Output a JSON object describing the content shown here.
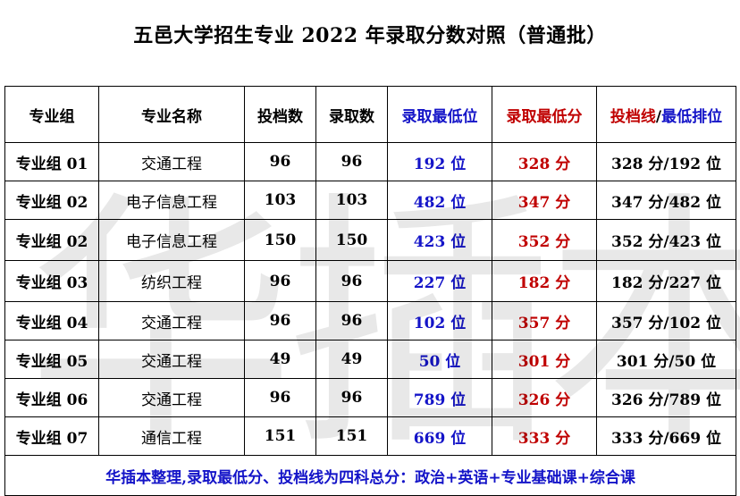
{
  "title": "五邑大学招生专业 2022 年录取分数对照（普通批）",
  "watermark": "华插本",
  "headers": {
    "group": "专业组",
    "major": "专业名称",
    "filed": "投档数",
    "admitted": "录取数",
    "min_rank": "录取最低位",
    "min_score": "录取最低分",
    "line_part1": "投档线",
    "line_sep": "/",
    "line_part2": "最低排位"
  },
  "rows": [
    {
      "group": "专业组 01",
      "major": "交通工程",
      "filed": "96",
      "admitted": "96",
      "min_rank": "192 位",
      "min_score": "328 分",
      "line": "328 分/192 位"
    },
    {
      "group": "专业组 02",
      "major": "电子信息工程",
      "filed": "103",
      "admitted": "103",
      "min_rank": "482 位",
      "min_score": "347 分",
      "line": "347 分/482 位"
    },
    {
      "group": "专业组 02",
      "major": "电子信息工程",
      "filed": "150",
      "admitted": "150",
      "min_rank": "423 位",
      "min_score": "352 分",
      "line": "352 分/423 位"
    },
    {
      "group": "专业组 03",
      "major": "纺织工程",
      "filed": "96",
      "admitted": "96",
      "min_rank": "227 位",
      "min_score": "182 分",
      "line": "182 分/227 位"
    },
    {
      "group": "专业组 04",
      "major": "交通工程",
      "filed": "96",
      "admitted": "96",
      "min_rank": "102 位",
      "min_score": "357 分",
      "line": "357 分/102 位"
    },
    {
      "group": "专业组 05",
      "major": "交通工程",
      "filed": "49",
      "admitted": "49",
      "min_rank": "50 位",
      "min_score": "301 分",
      "line": "301 分/50 位"
    },
    {
      "group": "专业组 06",
      "major": "交通工程",
      "filed": "96",
      "admitted": "96",
      "min_rank": "789 位",
      "min_score": "326 分",
      "line": "326 分/789 位"
    },
    {
      "group": "专业组 07",
      "major": "通信工程",
      "filed": "151",
      "admitted": "151",
      "min_rank": "669 位",
      "min_score": "333 分",
      "line": "333 分/669 位"
    }
  ],
  "footnote": "华插本整理,录取最低分、投档线为四科总分：政治+英语+专业基础课+综合课",
  "colors": {
    "blue": "#1414c8",
    "red": "#c00000",
    "watermark": "rgba(0,0,0,0.09)"
  }
}
